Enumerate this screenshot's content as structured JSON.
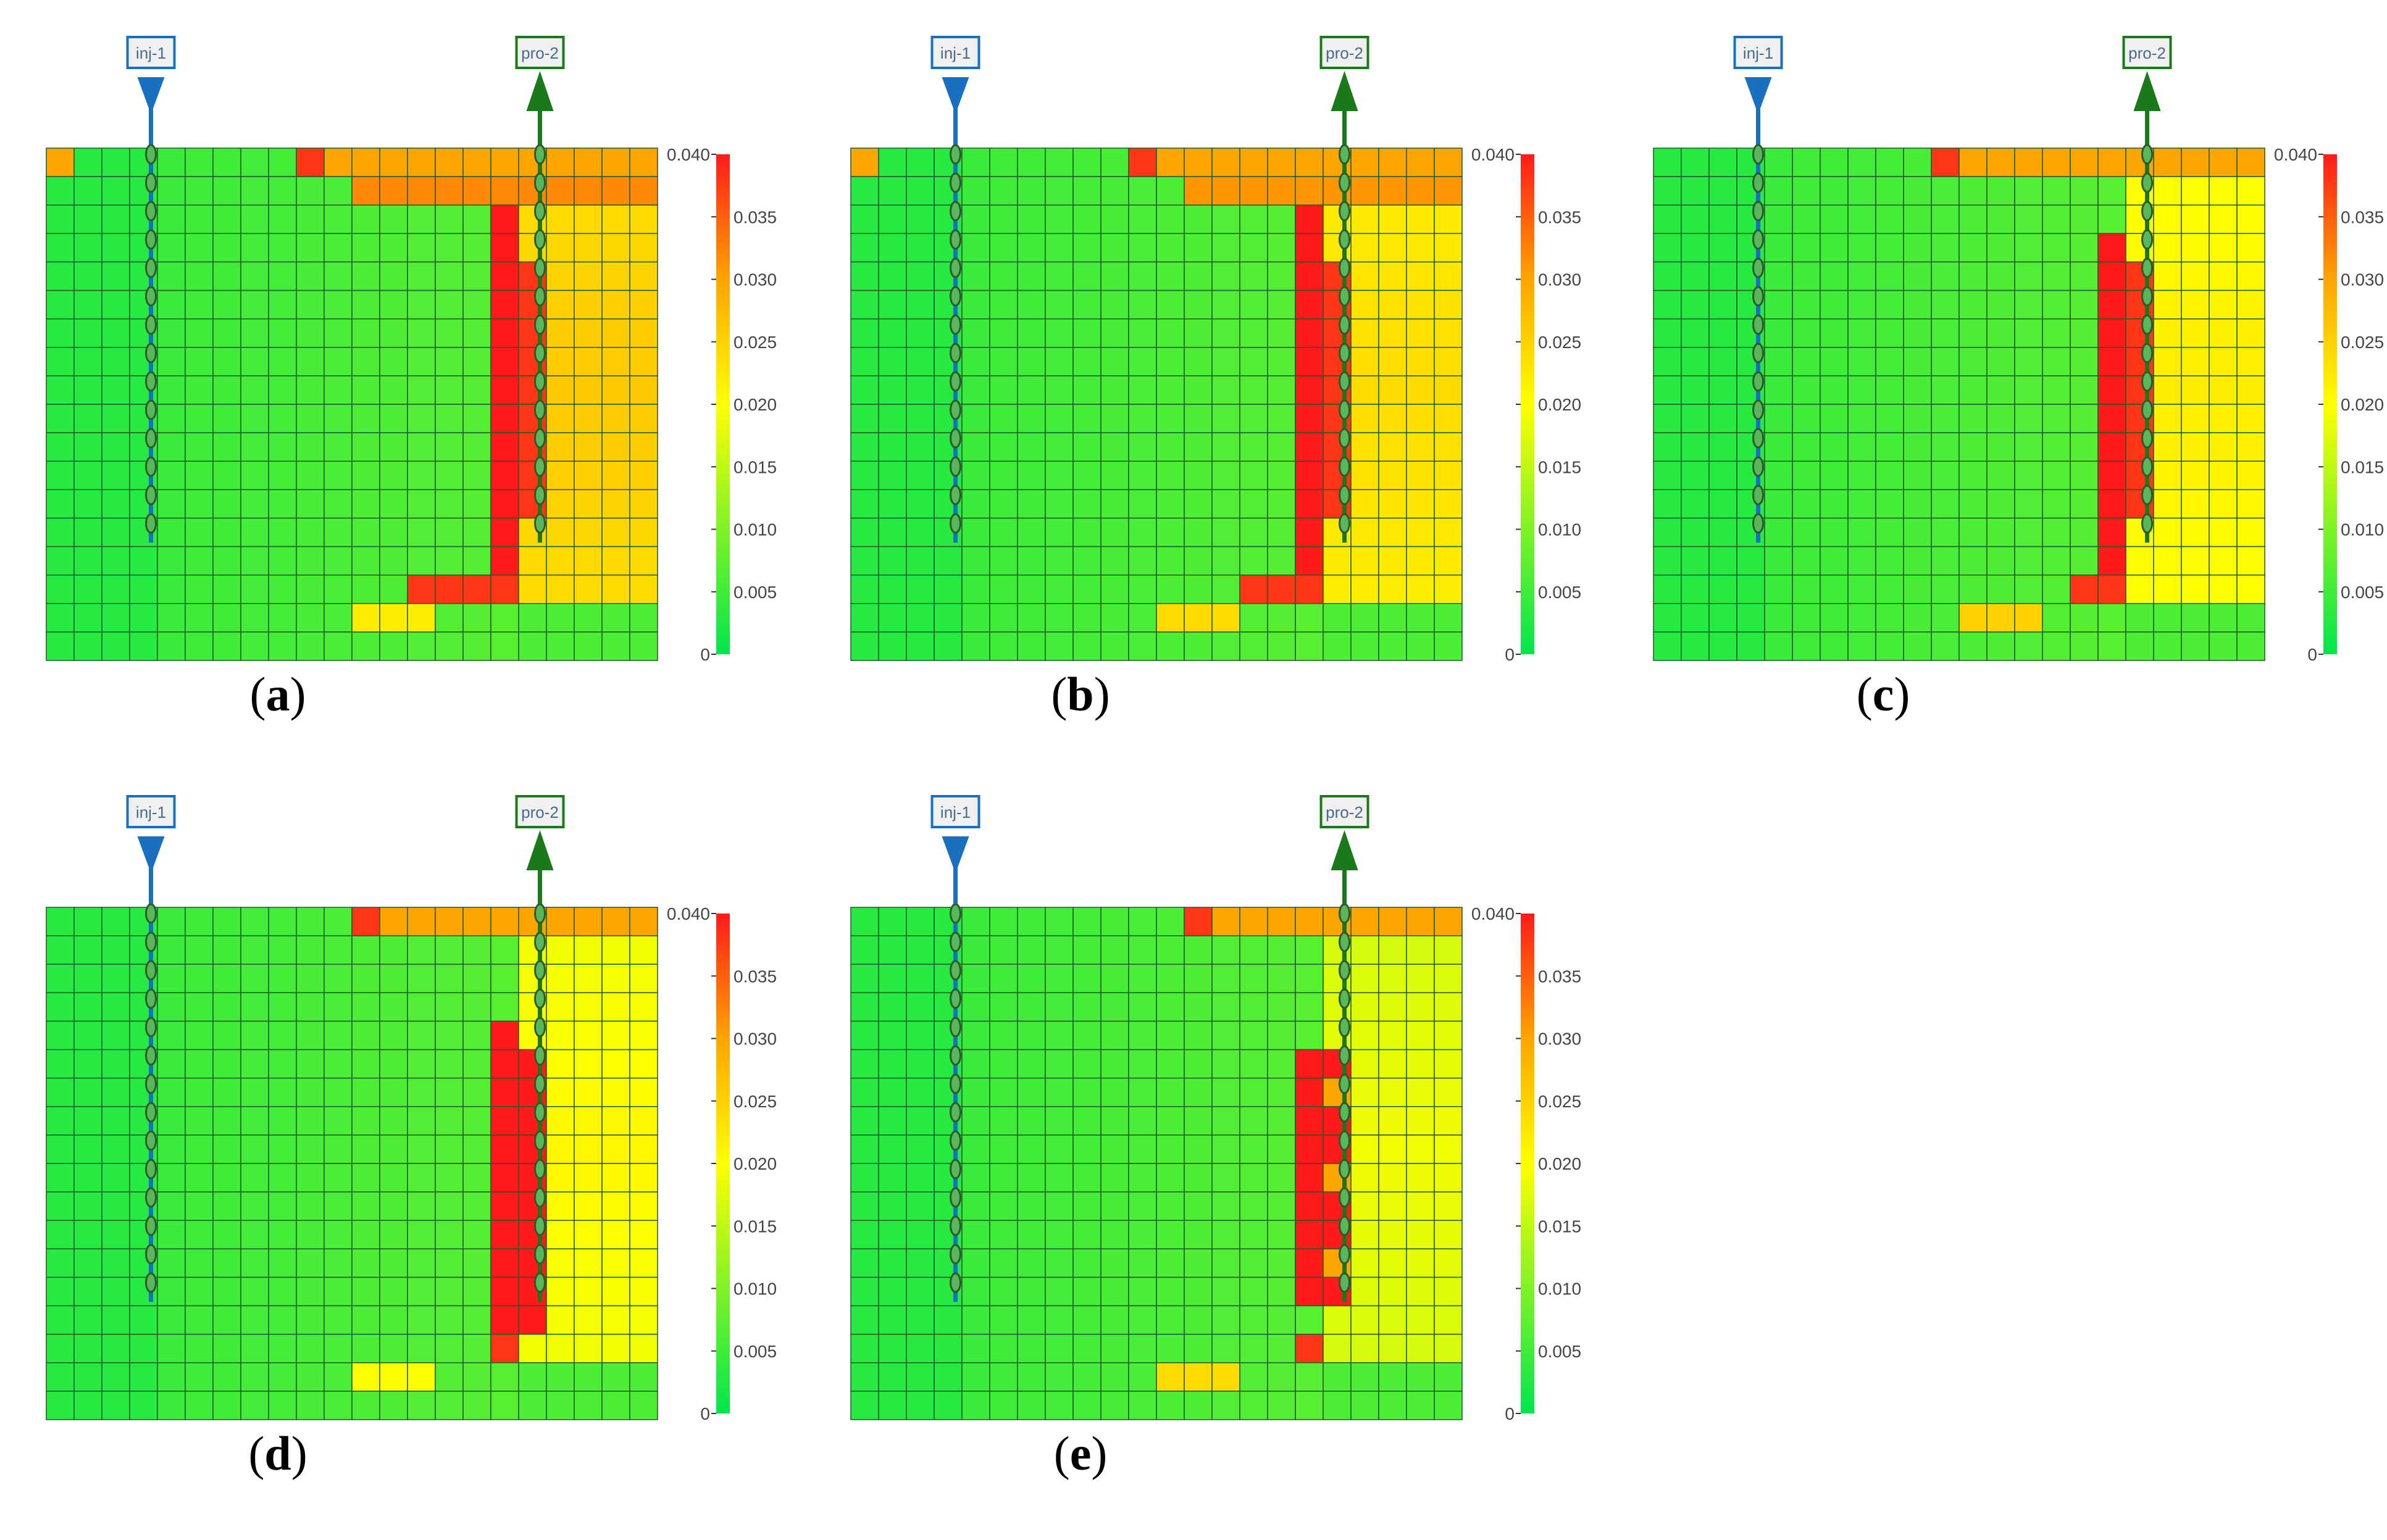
{
  "figure": {
    "wells": {
      "injector": "inj-1",
      "producer": "pro-2"
    },
    "colorbar": {
      "ticks": [
        "0.040",
        "0.035",
        "0.030",
        "0.025",
        "0.020",
        "0.015",
        "0.010",
        "0.005",
        "0"
      ],
      "range": [
        0,
        0.04
      ]
    },
    "colors": {
      "low": "#00e64d",
      "mid": "#ffff00",
      "orange": "#ffa500",
      "high": "#ff1a1a",
      "injector": "#1a70c0",
      "producer": "#1a7a1a"
    }
  },
  "chart_data": [
    {
      "type": "heatmap",
      "label": "a",
      "rows": 18,
      "cols": 22,
      "range": [
        0,
        0.04
      ],
      "description_values": "Fraction field; high values (~0.035-0.040) concentrated in column next to producer pro-2, moderate (~0.022-0.03) to the right of producer, low (~0.005-0.012) elsewhere"
    },
    {
      "type": "heatmap",
      "label": "b",
      "rows": 18,
      "cols": 22,
      "range": [
        0,
        0.04
      ]
    },
    {
      "type": "heatmap",
      "label": "c",
      "rows": 18,
      "cols": 22,
      "range": [
        0,
        0.04
      ]
    },
    {
      "type": "heatmap",
      "label": "d",
      "rows": 18,
      "cols": 22,
      "range": [
        0,
        0.04
      ]
    },
    {
      "type": "heatmap",
      "label": "e",
      "rows": 18,
      "cols": 22,
      "range": [
        0,
        0.04
      ]
    }
  ],
  "captions": [
    "a",
    "b",
    "c",
    "d",
    "e"
  ]
}
